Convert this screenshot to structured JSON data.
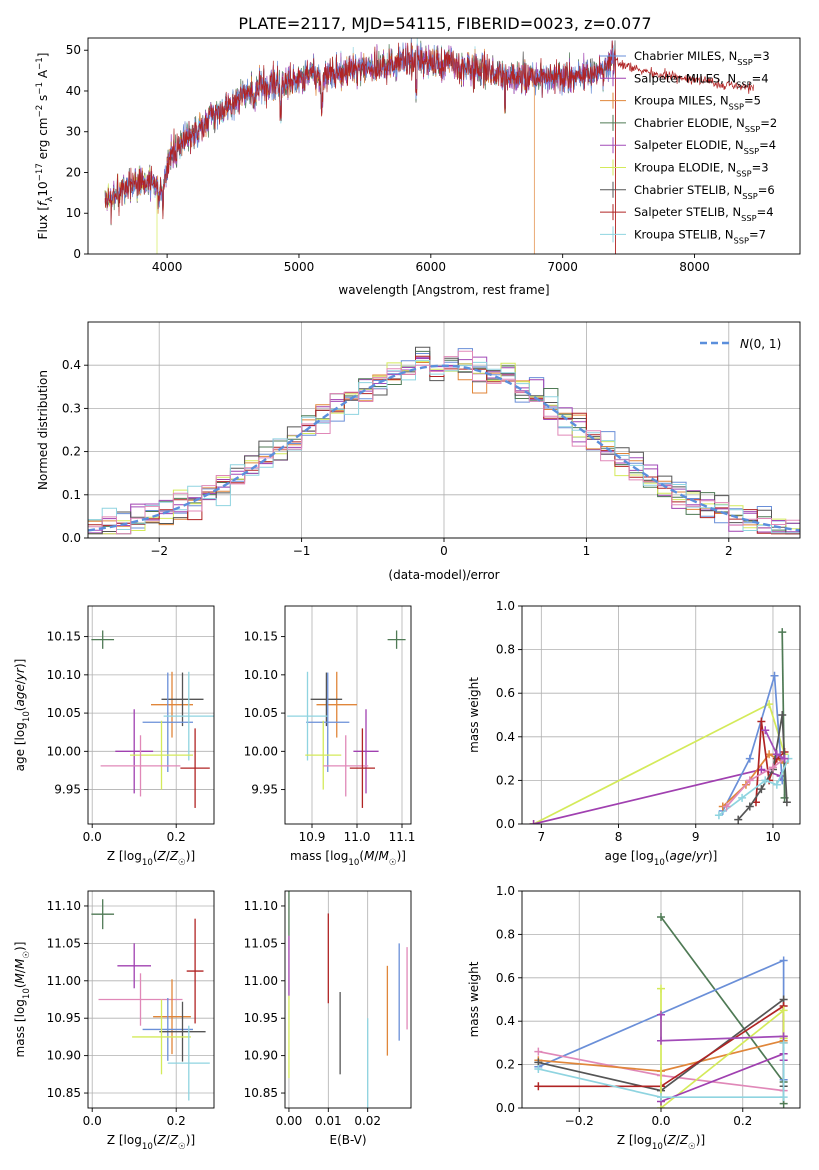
{
  "figure_title": "PLATE=2117, MJD=54115, FIBERID=0023, z=0.077",
  "colors": {
    "chabrier_miles": "#6a8fd8",
    "salpeter_miles": "#a040b0",
    "kroupa_miles": "#e0863a",
    "chabrier_elodie": "#4f7a55",
    "salpeter_elodie": "#a24bb8",
    "kroupa_elodie": "#d4ea5a",
    "chabrier_stelib": "#555555",
    "salpeter_stelib": "#b02424",
    "kroupa_stelib": "#8fd4e0",
    "pink": "#e088b8",
    "gaussian": "#5b8fdc",
    "grid": "#b0b0b0"
  },
  "legend_models": [
    {
      "key": "chabrier_miles",
      "pre": "Chabrier MILES, N",
      "sub": "SSP",
      "post": "=3"
    },
    {
      "key": "salpeter_miles",
      "pre": "Salpeter MILES, N",
      "sub": "SSP",
      "post": "=4"
    },
    {
      "key": "kroupa_miles",
      "pre": "Kroupa MILES, N",
      "sub": "SSP",
      "post": "=5"
    },
    {
      "key": "chabrier_elodie",
      "pre": "Chabrier ELODIE, N",
      "sub": "SSP",
      "post": "=2"
    },
    {
      "key": "salpeter_elodie",
      "pre": "Salpeter ELODIE, N",
      "sub": "SSP",
      "post": "=4"
    },
    {
      "key": "kroupa_elodie",
      "pre": "Kroupa ELODIE, N",
      "sub": "SSP",
      "post": "=3"
    },
    {
      "key": "chabrier_stelib",
      "pre": "Chabrier STELIB, N",
      "sub": "SSP",
      "post": "=6"
    },
    {
      "key": "salpeter_stelib",
      "pre": "Salpeter STELIB, N",
      "sub": "SSP",
      "post": "=4"
    },
    {
      "key": "kroupa_stelib",
      "pre": "Kroupa STELIB, N",
      "sub": "SSP",
      "post": "=7"
    }
  ],
  "chart_data": [
    {
      "id": "spectrum",
      "type": "line",
      "title": "PLATE=2117, MJD=54115, FIBERID=0023, z=0.077",
      "xlabel": "wavelength [Angstrom, rest frame]",
      "ylabel": "Flux [f_λ 10^-17 erg cm^-2 s^-1 A^-1]",
      "xlim": [
        3400,
        8800
      ],
      "ylim": [
        0,
        53
      ],
      "xticks": [
        4000,
        5000,
        6000,
        7000,
        8000
      ],
      "yticks": [
        0,
        10,
        20,
        30,
        40,
        50
      ],
      "continuum": {
        "x": [
          3530,
          3600,
          3700,
          3800,
          3900,
          3970,
          4000,
          4100,
          4200,
          4300,
          4400,
          4500,
          4600,
          4700,
          4800,
          4900,
          5000,
          5100,
          5200,
          5300,
          5400,
          5500,
          5600,
          5700,
          5800,
          5900,
          6000,
          6100,
          6200,
          6300,
          6400,
          6500,
          6600,
          6700,
          6800,
          6900,
          7000,
          7100,
          7200,
          7300,
          7400
        ],
        "y": [
          12,
          14,
          17,
          18,
          17,
          15,
          22,
          27,
          29,
          33,
          35,
          38,
          39,
          40,
          42,
          42,
          43,
          44,
          43,
          45,
          45,
          46,
          46,
          46,
          47,
          47,
          47,
          47,
          46,
          45,
          45,
          44,
          44,
          43,
          43,
          43,
          43,
          44,
          44,
          45,
          47
        ]
      },
      "dropouts": [
        {
          "series": "kroupa_elodie",
          "x": 3925
        },
        {
          "series": "kroupa_miles",
          "x": 6785
        },
        {
          "series": "salpeter_stelib",
          "x": 7420
        }
      ],
      "extension": {
        "series": "salpeter_stelib",
        "x": [
          7400,
          7700,
          8000,
          8300,
          8450
        ],
        "y": [
          47,
          44,
          43,
          41,
          41
        ]
      }
    },
    {
      "id": "residuals",
      "type": "step",
      "xlabel": "(data-model)/error",
      "ylabel": "Normed distribution",
      "xlim": [
        -2.5,
        2.5
      ],
      "ylim": [
        0,
        0.5
      ],
      "xticks": [
        -2,
        -1,
        0,
        1,
        2
      ],
      "yticks": [
        0,
        0.1,
        0.2,
        0.3,
        0.4
      ],
      "legend": "N(0,1)",
      "bin_width": 0.1
    },
    {
      "id": "age_vs_z",
      "type": "errorbar",
      "xlabel": "Z [log10(Z/Z☉)]",
      "ylabel": "age [log10(age/yr)]",
      "xlim": [
        -0.01,
        0.29
      ],
      "ylim": [
        9.905,
        10.19
      ],
      "xticks": [
        0.0,
        0.2
      ],
      "yticks": [
        9.95,
        10.0,
        10.05,
        10.1,
        10.15
      ],
      "points": [
        {
          "series": "chabrier_elodie",
          "x": 0.025,
          "xerr": 0.027,
          "y": 10.146,
          "yerr": 0.012
        },
        {
          "series": "salpeter_miles",
          "x": 0.1,
          "xerr": 0.045,
          "y": 10.0,
          "yerr": 0.055
        },
        {
          "series": "kroupa_miles",
          "x": 0.19,
          "xerr": 0.05,
          "y": 10.061,
          "yerr": 0.043
        },
        {
          "series": "chabrier_stelib",
          "x": 0.215,
          "xerr": 0.05,
          "y": 10.068,
          "yerr": 0.035
        },
        {
          "series": "chabrier_miles",
          "x": 0.18,
          "xerr": 0.06,
          "y": 10.038,
          "yerr": 0.065
        },
        {
          "series": "kroupa_stelib",
          "x": 0.23,
          "xerr": 0.06,
          "y": 10.046,
          "yerr": 0.058
        },
        {
          "series": "kroupa_elodie",
          "x": 0.165,
          "xerr": 0.075,
          "y": 9.995,
          "yerr": 0.045
        },
        {
          "series": "pink",
          "x": 0.115,
          "xerr": 0.095,
          "y": 9.981,
          "yerr": 0.04
        },
        {
          "series": "salpeter_stelib",
          "x": 0.245,
          "xerr": 0.035,
          "y": 9.978,
          "yerr": 0.052
        }
      ]
    },
    {
      "id": "age_vs_mass",
      "type": "errorbar",
      "xlabel": "mass [log10(M/M☉)]",
      "xlim": [
        10.84,
        11.12
      ],
      "ylim": [
        9.905,
        10.19
      ],
      "xticks": [
        10.9,
        11.0,
        11.1
      ],
      "yticks": [
        9.95,
        10.0,
        10.05,
        10.1,
        10.15
      ],
      "points": [
        {
          "series": "chabrier_elodie",
          "x": 11.088,
          "xerr": 0.02,
          "y": 10.146,
          "yerr": 0.012
        },
        {
          "series": "salpeter_miles",
          "x": 11.02,
          "xerr": 0.028,
          "y": 10.0,
          "yerr": 0.055
        },
        {
          "series": "kroupa_miles",
          "x": 10.955,
          "xerr": 0.045,
          "y": 10.061,
          "yerr": 0.043
        },
        {
          "series": "chabrier_stelib",
          "x": 10.932,
          "xerr": 0.035,
          "y": 10.068,
          "yerr": 0.035
        },
        {
          "series": "chabrier_miles",
          "x": 10.935,
          "xerr": 0.048,
          "y": 10.038,
          "yerr": 0.065
        },
        {
          "series": "kroupa_stelib",
          "x": 10.89,
          "xerr": 0.045,
          "y": 10.046,
          "yerr": 0.058
        },
        {
          "series": "kroupa_elodie",
          "x": 10.925,
          "xerr": 0.04,
          "y": 9.995,
          "yerr": 0.045
        },
        {
          "series": "pink",
          "x": 10.975,
          "xerr": 0.05,
          "y": 9.981,
          "yerr": 0.04
        },
        {
          "series": "salpeter_stelib",
          "x": 11.012,
          "xerr": 0.028,
          "y": 9.978,
          "yerr": 0.052
        }
      ]
    },
    {
      "id": "weight_vs_age",
      "type": "line",
      "xlabel": "age [log10(age/yr)]",
      "ylabel": "mass weight",
      "xlim": [
        6.75,
        10.35
      ],
      "ylim": [
        0,
        1.0
      ],
      "xticks": [
        7,
        8,
        9,
        10
      ],
      "yticks": [
        0.0,
        0.2,
        0.4,
        0.6,
        0.8,
        1.0
      ],
      "series": [
        {
          "series": "kroupa_elodie",
          "x": [
            6.9,
            9.95,
            10.15
          ],
          "y": [
            0.0,
            0.55,
            0.32
          ]
        },
        {
          "series": "salpeter_miles",
          "x": [
            6.9,
            9.85,
            10.1
          ],
          "y": [
            0.0,
            0.25,
            0.22
          ]
        },
        {
          "series": "chabrier_miles",
          "x": [
            9.35,
            9.7,
            10.02,
            10.12
          ],
          "y": [
            0.06,
            0.3,
            0.68,
            0.2
          ]
        },
        {
          "series": "kroupa_miles",
          "x": [
            9.35,
            9.65,
            9.95,
            10.15
          ],
          "y": [
            0.08,
            0.18,
            0.32,
            0.28
          ]
        },
        {
          "series": "chabrier_elodie",
          "x": [
            10.12,
            10.15
          ],
          "y": [
            0.88,
            0.12
          ]
        },
        {
          "series": "salpeter_stelib",
          "x": [
            9.78,
            9.85,
            9.95,
            10.05,
            10.15
          ],
          "y": [
            0.1,
            0.47,
            0.2,
            0.3,
            0.33
          ]
        },
        {
          "series": "chabrier_stelib",
          "x": [
            9.55,
            9.7,
            9.85,
            10.0,
            10.12,
            10.18
          ],
          "y": [
            0.02,
            0.08,
            0.16,
            0.25,
            0.5,
            0.1
          ]
        },
        {
          "series": "kroupa_stelib",
          "x": [
            9.3,
            9.6,
            9.9,
            10.05,
            10.2
          ],
          "y": [
            0.04,
            0.12,
            0.2,
            0.18,
            0.3
          ]
        },
        {
          "series": "pink",
          "x": [
            9.4,
            9.7,
            10.0,
            10.15
          ],
          "y": [
            0.08,
            0.2,
            0.26,
            0.3
          ]
        },
        {
          "series": "salpeter_elodie",
          "x": [
            9.9,
            10.05,
            10.15
          ],
          "y": [
            0.43,
            0.32,
            0.3
          ]
        }
      ]
    },
    {
      "id": "mass_vs_z",
      "type": "errorbar",
      "xlabel": "Z [log10(Z/Z☉)]",
      "ylabel": "mass [log10(M/M☉)]",
      "xlim": [
        -0.01,
        0.29
      ],
      "ylim": [
        10.83,
        11.12
      ],
      "xticks": [
        0.0,
        0.2
      ],
      "yticks": [
        10.85,
        10.9,
        10.95,
        11.0,
        11.05,
        11.1
      ],
      "points": [
        {
          "series": "chabrier_elodie",
          "x": 0.025,
          "xerr": 0.027,
          "y": 11.089,
          "yerr": 0.02
        },
        {
          "series": "salpeter_miles",
          "x": 0.1,
          "xerr": 0.04,
          "y": 11.02,
          "yerr": 0.03
        },
        {
          "series": "pink",
          "x": 0.115,
          "xerr": 0.1,
          "y": 10.975,
          "yerr": 0.035
        },
        {
          "series": "kroupa_miles",
          "x": 0.19,
          "xerr": 0.045,
          "y": 10.952,
          "yerr": 0.05
        },
        {
          "series": "chabrier_miles",
          "x": 0.18,
          "xerr": 0.06,
          "y": 10.935,
          "yerr": 0.042
        },
        {
          "series": "chabrier_stelib",
          "x": 0.215,
          "xerr": 0.055,
          "y": 10.932,
          "yerr": 0.04
        },
        {
          "series": "kroupa_elodie",
          "x": 0.165,
          "xerr": 0.07,
          "y": 10.925,
          "yerr": 0.05
        },
        {
          "series": "salpeter_stelib",
          "x": 0.245,
          "xerr": 0.02,
          "y": 11.013,
          "yerr": 0.07
        },
        {
          "series": "kroupa_stelib",
          "x": 0.23,
          "xerr": 0.05,
          "y": 10.89,
          "yerr": 0.05
        }
      ]
    },
    {
      "id": "mass_vs_ebv",
      "type": "errorbar",
      "xlabel": "E(B-V)",
      "xlim": [
        -0.001,
        0.031
      ],
      "ylim": [
        10.83,
        11.12
      ],
      "xticks": [
        0.0,
        0.01,
        0.02
      ],
      "yticks": [
        10.85,
        10.9,
        10.95,
        11.0,
        11.05,
        11.1
      ],
      "points": [
        {
          "series": "chabrier_elodie",
          "x": 0.0,
          "y": 11.09,
          "yerr": 0.03
        },
        {
          "series": "salpeter_miles",
          "x": 0.0,
          "y": 11.02,
          "yerr": 0.04
        },
        {
          "series": "kroupa_elodie",
          "x": 0.0,
          "y": 10.925,
          "yerr": 0.055
        },
        {
          "series": "salpeter_stelib",
          "x": 0.01,
          "y": 11.03,
          "yerr": 0.06
        },
        {
          "series": "chabrier_stelib",
          "x": 0.013,
          "y": 10.93,
          "yerr": 0.055
        },
        {
          "series": "kroupa_stelib",
          "x": 0.02,
          "y": 10.89,
          "yerr": 0.06
        },
        {
          "series": "kroupa_miles",
          "x": 0.025,
          "y": 10.96,
          "yerr": 0.06
        },
        {
          "series": "chabrier_miles",
          "x": 0.028,
          "y": 10.985,
          "yerr": 0.065
        },
        {
          "series": "pink",
          "x": 0.03,
          "y": 10.99,
          "yerr": 0.055
        }
      ]
    },
    {
      "id": "weight_vs_z",
      "type": "line",
      "xlabel": "Z [log10(Z/Z☉)]",
      "ylabel": "mass weight",
      "xlim": [
        -0.34,
        0.34
      ],
      "ylim": [
        0,
        1.0
      ],
      "xticks": [
        -0.2,
        0.0,
        0.2
      ],
      "yticks": [
        0.0,
        0.2,
        0.4,
        0.6,
        0.8,
        1.0
      ],
      "series": [
        {
          "series": "chabrier_elodie",
          "x": [
            0.0,
            0.3,
            0.3
          ],
          "y": [
            0.88,
            0.12,
            0.02
          ]
        },
        {
          "series": "chabrier_miles",
          "x": [
            -0.3,
            0.3,
            0.3
          ],
          "y": [
            0.19,
            0.68,
            0.13
          ]
        },
        {
          "series": "pink",
          "x": [
            -0.3,
            0.0,
            0.3
          ],
          "y": [
            0.26,
            0.15,
            0.08
          ]
        },
        {
          "series": "kroupa_miles",
          "x": [
            -0.3,
            0.0,
            0.3,
            0.3
          ],
          "y": [
            0.22,
            0.17,
            0.31,
            0.3
          ]
        },
        {
          "series": "chabrier_stelib",
          "x": [
            -0.3,
            0.0,
            0.3,
            0.3
          ],
          "y": [
            0.21,
            0.08,
            0.5,
            0.1
          ]
        },
        {
          "series": "salpeter_stelib",
          "x": [
            -0.3,
            0.0,
            0.3,
            0.3
          ],
          "y": [
            0.1,
            0.1,
            0.47,
            0.33
          ]
        },
        {
          "series": "kroupa_elodie",
          "x": [
            0.0,
            0.0,
            0.3,
            0.3
          ],
          "y": [
            0.55,
            0.0,
            0.45,
            0.32
          ]
        },
        {
          "series": "salpeter_miles",
          "x": [
            0.0,
            0.3,
            0.3
          ],
          "y": [
            0.03,
            0.25,
            0.22
          ]
        },
        {
          "series": "kroupa_stelib",
          "x": [
            -0.3,
            0.0,
            0.3,
            0.3
          ],
          "y": [
            0.18,
            0.05,
            0.05,
            0.3
          ]
        },
        {
          "series": "salpeter_elodie",
          "x": [
            0.0,
            0.0,
            0.3
          ],
          "y": [
            0.43,
            0.31,
            0.33
          ]
        }
      ]
    }
  ]
}
